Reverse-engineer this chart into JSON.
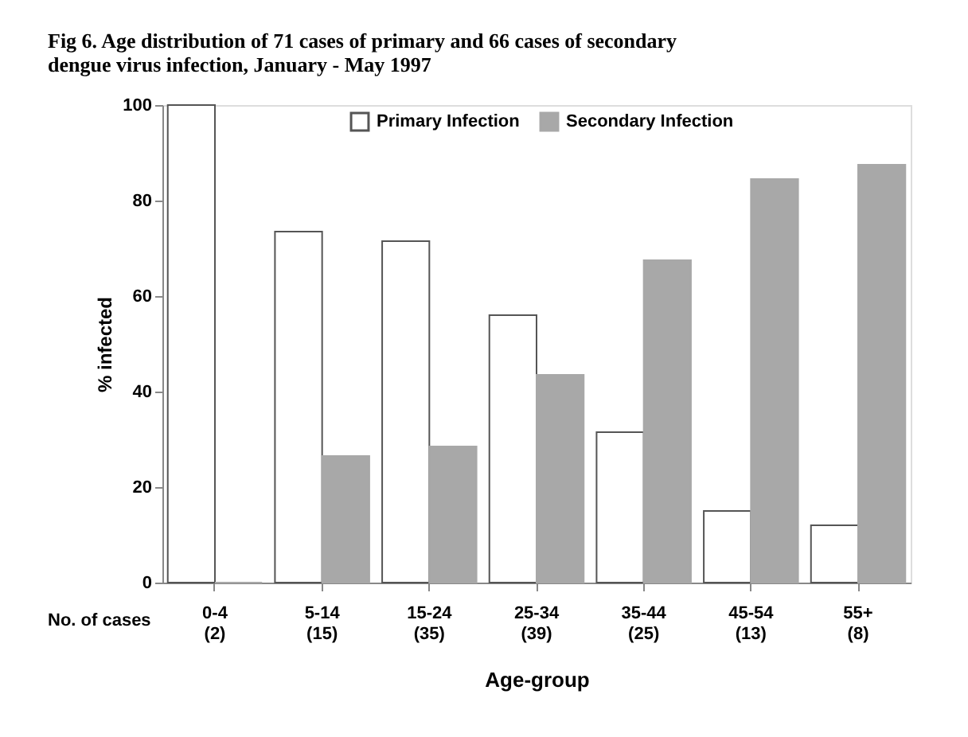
{
  "chart_data": {
    "type": "bar",
    "title": [
      "Fig 6.  Age distribution of 71 cases of primary and 66 cases of secondary",
      "dengue virus infection, January - May 1997"
    ],
    "xlabel": "Age-group",
    "ylabel": "% infected",
    "categories": [
      "0-4\n(2)",
      "5-14\n(15)",
      "15-24\n(35)",
      "25-34\n(39)",
      "35-44\n(25)",
      "45-54\n(13)",
      "55+\n(8)"
    ],
    "series": [
      {
        "name": "Primary Infection",
        "color": "#ffffff",
        "values": [
          100,
          73.5,
          71.5,
          56,
          31.5,
          15,
          12
        ]
      },
      {
        "name": "Secondary Infection",
        "color": "#a8a8a8",
        "values": [
          0,
          26.5,
          28.5,
          43.5,
          67.5,
          84.5,
          87.5
        ]
      }
    ],
    "ylim": [
      0,
      100
    ],
    "yticks": [
      0,
      20,
      40,
      60,
      80,
      100
    ],
    "grid": false,
    "legend": "top",
    "annotations": [
      "No. of cases"
    ]
  }
}
